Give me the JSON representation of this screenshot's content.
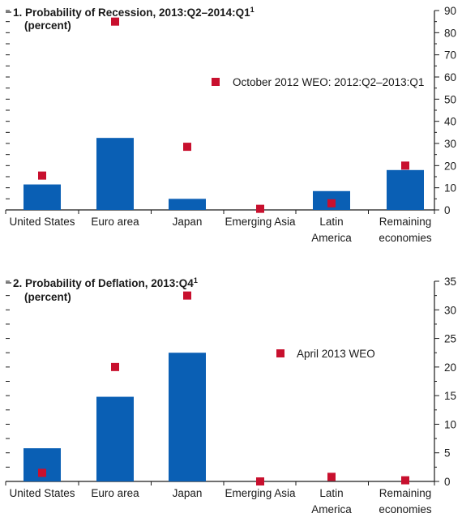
{
  "colors": {
    "bar": "#0a5fb4",
    "marker": "#c8102e",
    "axis": "#1a1a1a"
  },
  "chart_data": [
    {
      "type": "bar",
      "title": "1. Probability of Recession, 2013:Q2–2014:Q1",
      "title_sup": "1",
      "subtitle": "(percent)",
      "categories": [
        [
          "United States"
        ],
        [
          "Euro area"
        ],
        [
          "Japan"
        ],
        [
          "Emerging Asia"
        ],
        [
          "Latin",
          "America"
        ],
        [
          "Remaining",
          "economies"
        ]
      ],
      "series": [
        {
          "values": [
            11.5,
            32.5,
            5,
            0,
            8.5,
            18
          ]
        },
        {
          "name": "October 2012 WEO: 2012:Q2–2013:Q1",
          "values": [
            15.5,
            85,
            28.5,
            0.5,
            3,
            20
          ]
        }
      ],
      "ylim": [
        0,
        90
      ],
      "yticks": [
        0,
        10,
        20,
        30,
        40,
        50,
        60,
        70,
        80,
        90
      ],
      "minor_step": 5
    },
    {
      "type": "bar",
      "title": "2. Probability of Deflation, 2013:Q4",
      "title_sup": "1",
      "subtitle": "(percent)",
      "categories": [
        [
          "United States"
        ],
        [
          "Euro area"
        ],
        [
          "Japan"
        ],
        [
          "Emerging Asia"
        ],
        [
          "Latin",
          "America"
        ],
        [
          "Remaining",
          "economies"
        ]
      ],
      "series": [
        {
          "values": [
            5.8,
            14.8,
            22.5,
            0,
            0,
            0
          ]
        },
        {
          "name": "April 2013 WEO",
          "values": [
            1.5,
            20,
            32.5,
            0,
            0.8,
            0.2
          ]
        }
      ],
      "ylim": [
        0,
        35
      ],
      "yticks": [
        0,
        5,
        10,
        15,
        20,
        25,
        30,
        35
      ],
      "minor_step": 2.5
    }
  ]
}
